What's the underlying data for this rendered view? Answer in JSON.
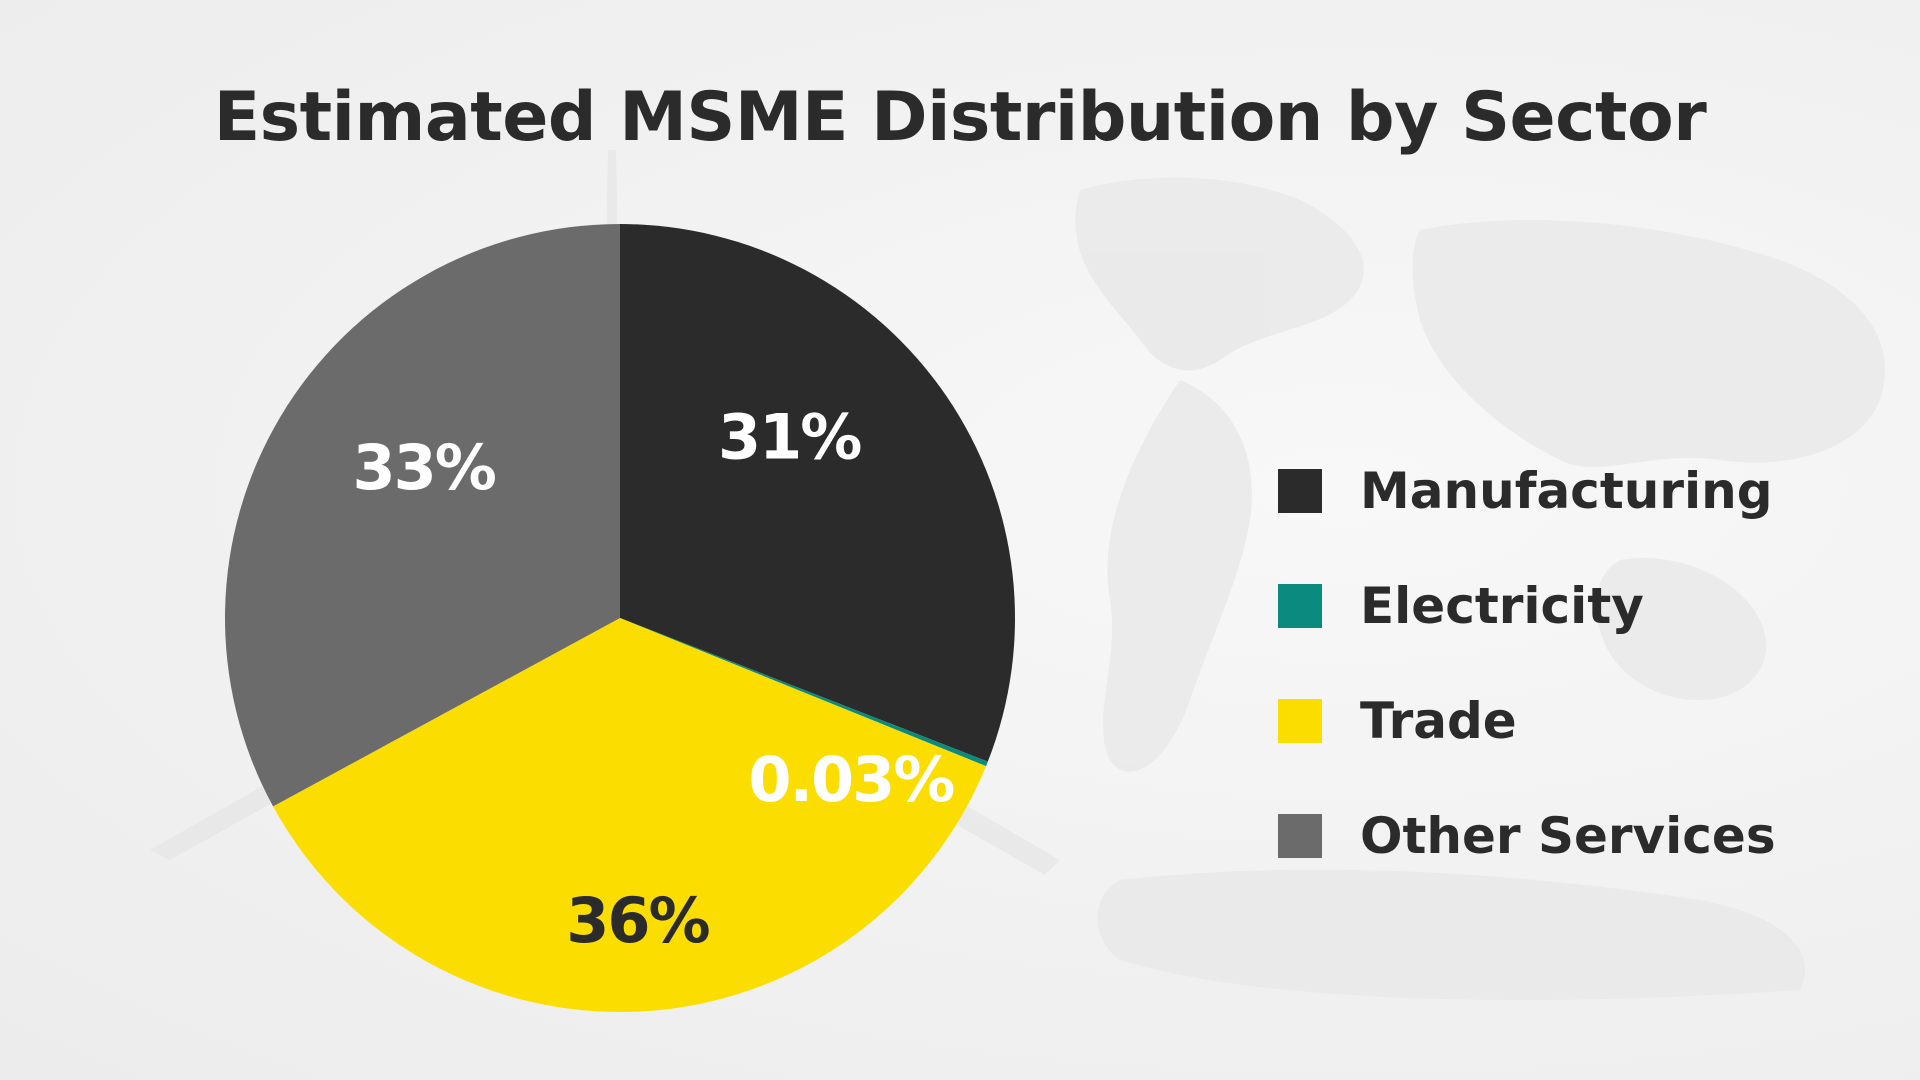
{
  "chart_data": {
    "type": "pie",
    "title": "Estimated MSME Distribution by Sector",
    "categories": [
      "Manufacturing",
      "Electricity",
      "Trade",
      "Other Services"
    ],
    "values": [
      31,
      0.03,
      36,
      33
    ],
    "value_labels": [
      "31%",
      "0.03%",
      "36%",
      "33%"
    ],
    "colors": [
      "#2b2b2b",
      "#0b8a80",
      "#fbdd00",
      "#6b6b6b"
    ],
    "label_colors": [
      "#ffffff",
      "#ffffff",
      "#2b2b2b",
      "#ffffff"
    ],
    "legend_position": "right"
  }
}
